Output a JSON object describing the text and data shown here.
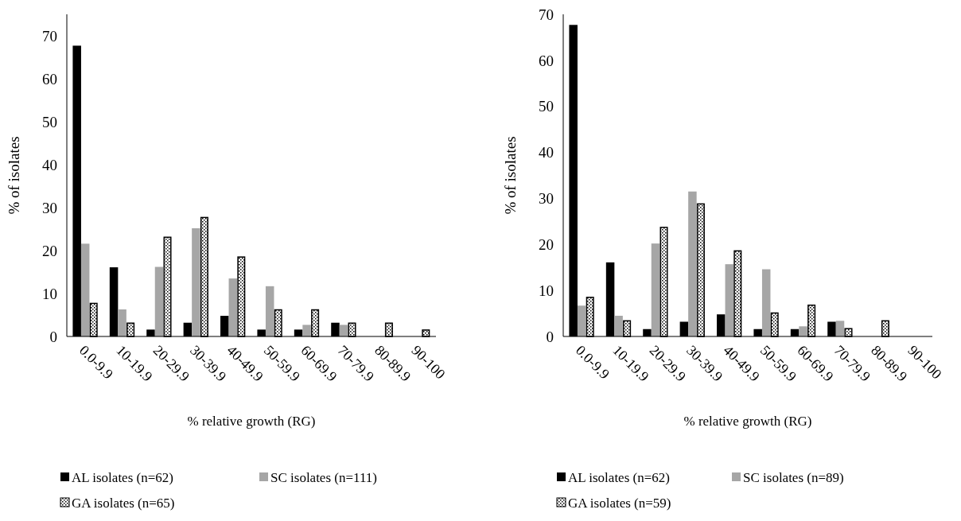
{
  "chart_data": [
    {
      "type": "bar",
      "xlabel": "% relative growth (RG)",
      "ylabel": "% of isolates",
      "categories": [
        "0.0-9.9",
        "10-19.9",
        "20-29.9",
        "30-39.9",
        "40-49.9",
        "50-59.9",
        "60-69.9",
        "70-79.9",
        "80-89.9",
        "90-100"
      ],
      "ylim": [
        0,
        75
      ],
      "yticks": [
        0,
        10,
        20,
        30,
        40,
        50,
        60,
        70
      ],
      "grid": false,
      "legend": "bottom",
      "series": [
        {
          "name": "AL isolates (n=62)",
          "color": "#000000",
          "values": [
            67.7,
            16.1,
            1.6,
            3.2,
            4.8,
            1.6,
            1.6,
            3.2,
            0,
            0
          ]
        },
        {
          "name": "SC isolates (n=111)",
          "color": "#a6a6a6",
          "values": [
            21.6,
            6.3,
            16.2,
            25.2,
            13.5,
            11.7,
            2.7,
            2.7,
            0,
            0
          ]
        },
        {
          "name": "GA isolates (n=65)",
          "color": "#000000",
          "values": [
            7.7,
            3.1,
            23.1,
            27.7,
            18.5,
            6.2,
            6.2,
            3.1,
            3.1,
            1.5
          ]
        }
      ]
    },
    {
      "type": "bar",
      "xlabel": "% relative growth (RG)",
      "ylabel": "% of isolates",
      "categories": [
        "0.0-9.9",
        "10-19.9",
        "20-29.9",
        "30-39.9",
        "40-49.9",
        "50-59.9",
        "60-69.9",
        "70-79.9",
        "80-89.9",
        "90-100"
      ],
      "ylim": [
        0,
        70
      ],
      "yticks": [
        0,
        10,
        20,
        30,
        40,
        50,
        60,
        70
      ],
      "grid": false,
      "legend": "bottom",
      "series": [
        {
          "name": "AL isolates (n=62)",
          "color": "#000000",
          "values": [
            67.7,
            16.1,
            1.6,
            3.2,
            4.8,
            1.6,
            1.6,
            3.2,
            0,
            0
          ]
        },
        {
          "name": "SC isolates (n=89)",
          "color": "#a6a6a6",
          "values": [
            6.7,
            4.5,
            20.2,
            31.5,
            15.7,
            14.6,
            2.2,
            3.4,
            0,
            0
          ]
        },
        {
          "name": "GA isolates (n=59)",
          "color": "#000000",
          "values": [
            8.5,
            3.4,
            23.7,
            28.8,
            18.6,
            5.1,
            6.8,
            1.7,
            3.4,
            0
          ]
        }
      ]
    }
  ]
}
